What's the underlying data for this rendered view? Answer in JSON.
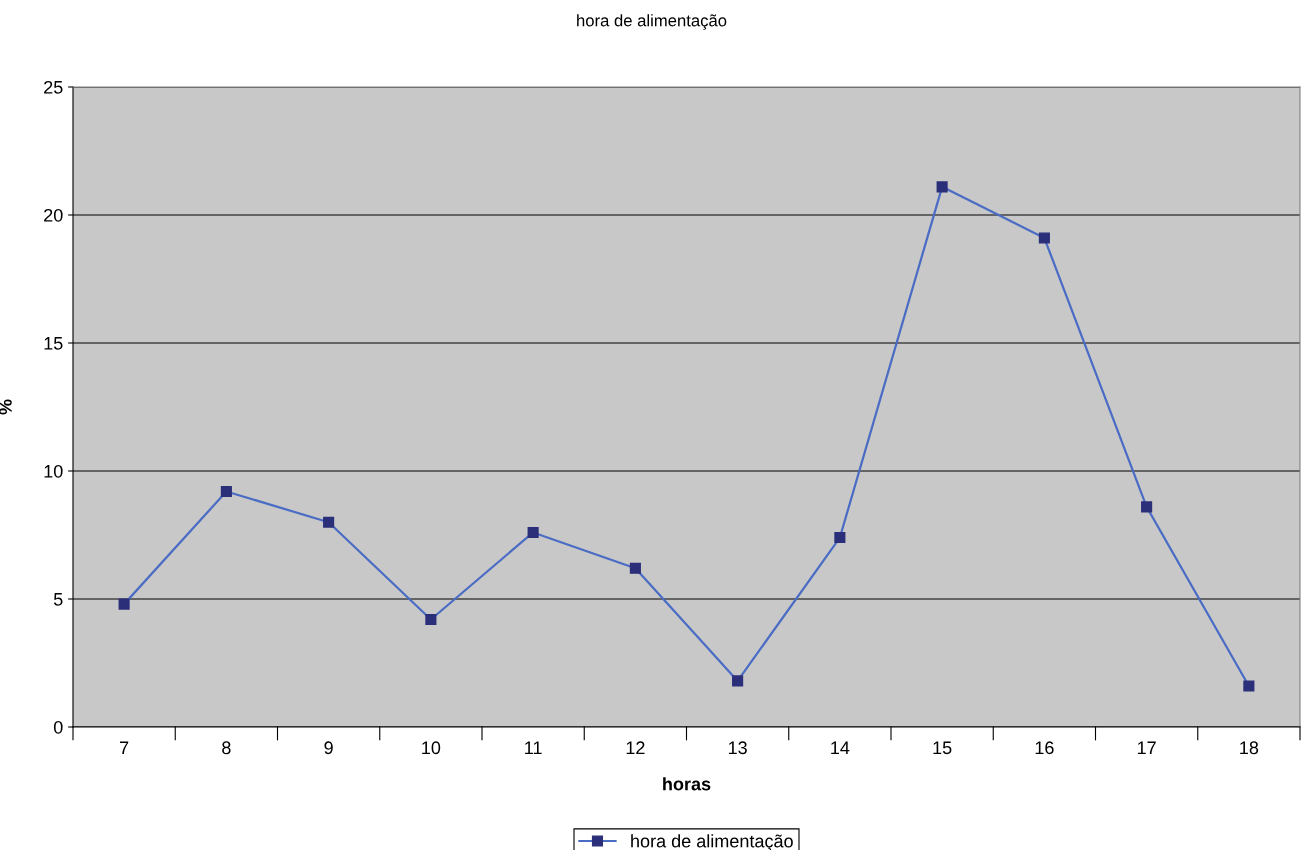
{
  "chart_data": {
    "type": "line",
    "title": "hora de alimentação",
    "xlabel": "horas",
    "ylabel": "%",
    "categories": [
      "7",
      "8",
      "9",
      "10",
      "11",
      "12",
      "13",
      "14",
      "15",
      "16",
      "17",
      "18"
    ],
    "series": [
      {
        "name": "hora de alimentação",
        "color": "#4a6cc4",
        "values": [
          4.8,
          9.2,
          8.0,
          4.2,
          7.6,
          6.2,
          1.8,
          7.4,
          21.1,
          19.1,
          8.6,
          1.6
        ]
      }
    ],
    "ylim": [
      0,
      25
    ],
    "yticks": [
      0,
      5,
      10,
      15,
      20,
      25
    ],
    "grid": "y",
    "legend": "bottom",
    "marker": "square",
    "line_style": "solid"
  }
}
